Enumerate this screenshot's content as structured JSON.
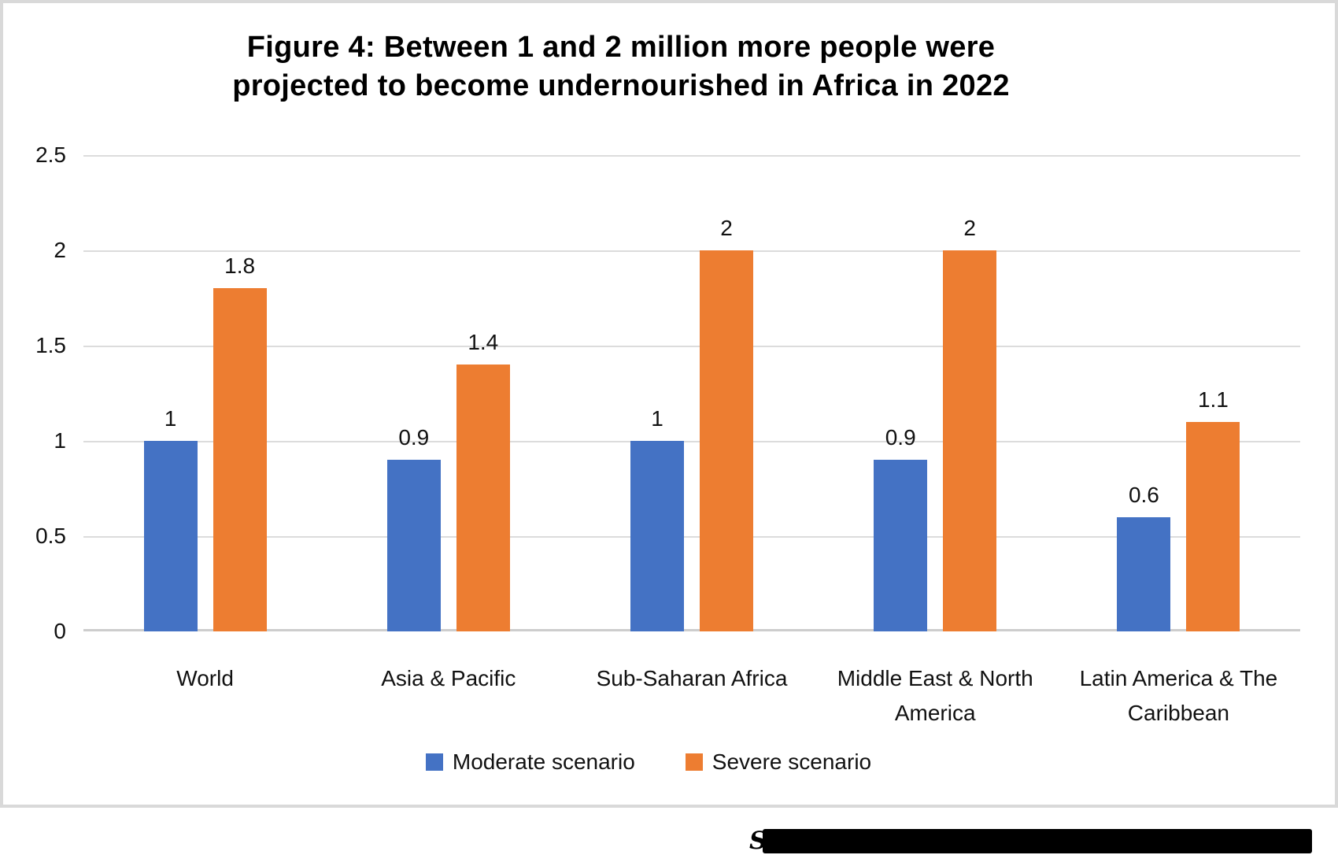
{
  "figure": {
    "title_lines": [
      "Figure 4: Between 1 and 2 million more people were",
      "projected to become undernourished in Africa in 2022"
    ]
  },
  "chart_data": {
    "type": "bar",
    "title": "Figure 4: Between 1 and 2 million more people were projected to become undernourished in Africa in 2022",
    "categories": [
      "World",
      "Asia & Pacific",
      "Sub-Saharan Africa",
      "Middle East & North America",
      "Latin America & The Caribbean"
    ],
    "series": [
      {
        "name": "Moderate scenario",
        "color": "#4472C4",
        "values": [
          1,
          0.9,
          1,
          0.9,
          0.6
        ],
        "data_labels": [
          "1",
          "0.9",
          "1",
          "0.9",
          "0.6"
        ]
      },
      {
        "name": "Severe scenario",
        "color": "#ED7D31",
        "values": [
          1.8,
          1.4,
          2,
          2,
          1.1
        ],
        "data_labels": [
          "1.8",
          "1.4",
          "2",
          "2",
          "1.1"
        ]
      }
    ],
    "xlabel": "",
    "ylabel": "",
    "ylim": [
      0,
      2.5
    ],
    "ytick_step": 0.5,
    "yticks": [
      "2.5",
      "2",
      "1.5",
      "1",
      "0.5",
      "0"
    ],
    "grid": true,
    "data_labels_shown": true,
    "legend_position": "bottom"
  },
  "source_note": {
    "visible_text": "S",
    "redacted": true
  }
}
